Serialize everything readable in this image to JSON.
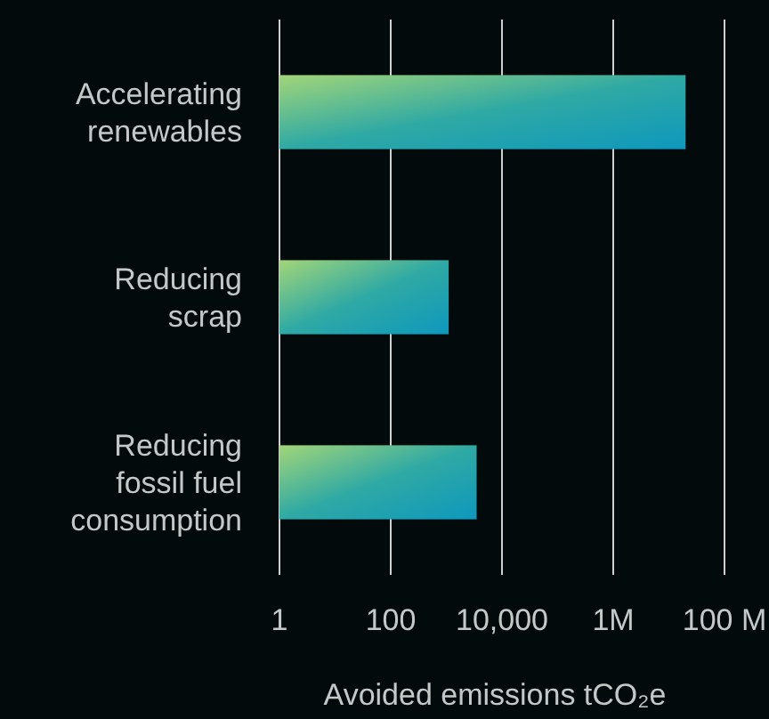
{
  "chart_data": {
    "type": "bar",
    "orientation": "horizontal",
    "log": "x",
    "categories": [
      "Accelerating renewables",
      "Reducing scrap",
      "Reducing fossil fuel consumption"
    ],
    "values": [
      20000000,
      1100,
      3500
    ],
    "color": "#2fa9a4",
    "xlim": [
      1,
      100000000
    ],
    "xticks": [
      1,
      100,
      {
        "value": 10000,
        "label": "10,000"
      },
      {
        "value": 1000000,
        "label": "1M"
      },
      {
        "value": 100000000,
        "label": "100 M"
      }
    ],
    "xlabel": "Avoided emissions tCO₂e",
    "grid": "x"
  }
}
